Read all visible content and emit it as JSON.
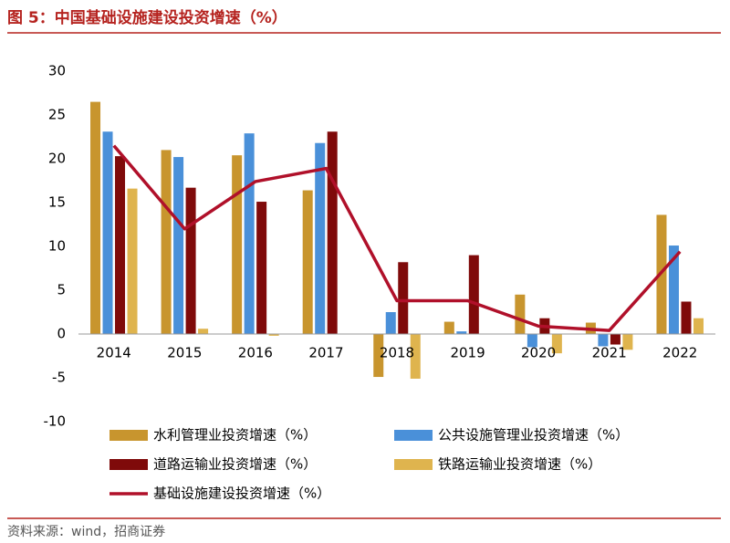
{
  "title": "图 5：中国基础设施建设投资增速（%）",
  "source": "资料来源：wind，招商证券",
  "chart_data": {
    "type": "bar",
    "categories": [
      "2014",
      "2015",
      "2016",
      "2017",
      "2018",
      "2019",
      "2020",
      "2021",
      "2022"
    ],
    "series": [
      {
        "name": "水利管理业投资增速（%）",
        "color": "#c8952e",
        "values": [
          26.5,
          21.0,
          20.4,
          16.4,
          -4.9,
          1.4,
          4.5,
          1.3,
          13.6
        ]
      },
      {
        "name": "公共设施管理业投资增速（%）",
        "color": "#4a90d9",
        "values": [
          23.1,
          20.2,
          22.9,
          21.8,
          2.5,
          0.3,
          -1.5,
          -1.4,
          10.1
        ]
      },
      {
        "name": "道路运输业投资增速（%）",
        "color": "#7f0a0a",
        "values": [
          20.3,
          16.7,
          15.1,
          23.1,
          8.2,
          9.0,
          1.8,
          -1.2,
          3.7
        ]
      },
      {
        "name": "铁路运输业投资增速（%）",
        "color": "#dfb44e",
        "values": [
          16.6,
          0.6,
          -0.2,
          0.0,
          -5.1,
          0.0,
          -2.2,
          -1.8,
          1.8
        ]
      },
      {
        "name": "基础设施建设投资增速（%）",
        "color": "#b0102a",
        "type": "line",
        "values": [
          21.5,
          12.0,
          17.4,
          18.9,
          3.8,
          3.8,
          0.9,
          0.4,
          9.4
        ]
      }
    ],
    "ylim": [
      -10,
      30
    ],
    "yticks": [
      -10,
      -5,
      0,
      5,
      10,
      15,
      20,
      25,
      30
    ],
    "grid": false
  }
}
